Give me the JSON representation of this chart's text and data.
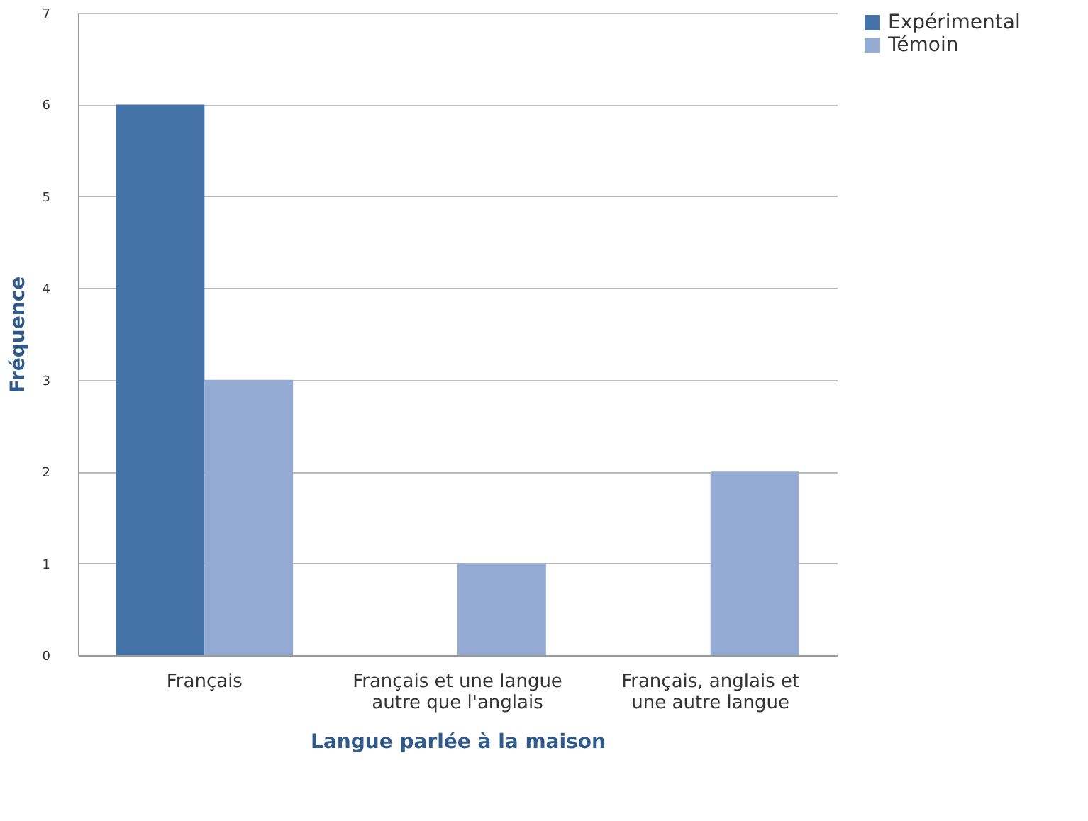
{
  "chart_data": {
    "type": "bar",
    "xlabel": "Langue parlée à la maison",
    "ylabel": "Fréquence",
    "categories": [
      "Français",
      "Français et une langue autre que l'anglais",
      "Français, anglais et une autre langue"
    ],
    "series": [
      {
        "name": "Expérimental",
        "color": "#4573a7",
        "values": [
          6,
          0,
          0
        ]
      },
      {
        "name": "Témoin",
        "color": "#95aad2",
        "values": [
          3,
          1,
          2
        ]
      }
    ],
    "ylim": [
      0,
      7
    ],
    "yticks": [
      0,
      1,
      2,
      3,
      4,
      5,
      6,
      7
    ],
    "grid": "y",
    "legend": "right"
  }
}
